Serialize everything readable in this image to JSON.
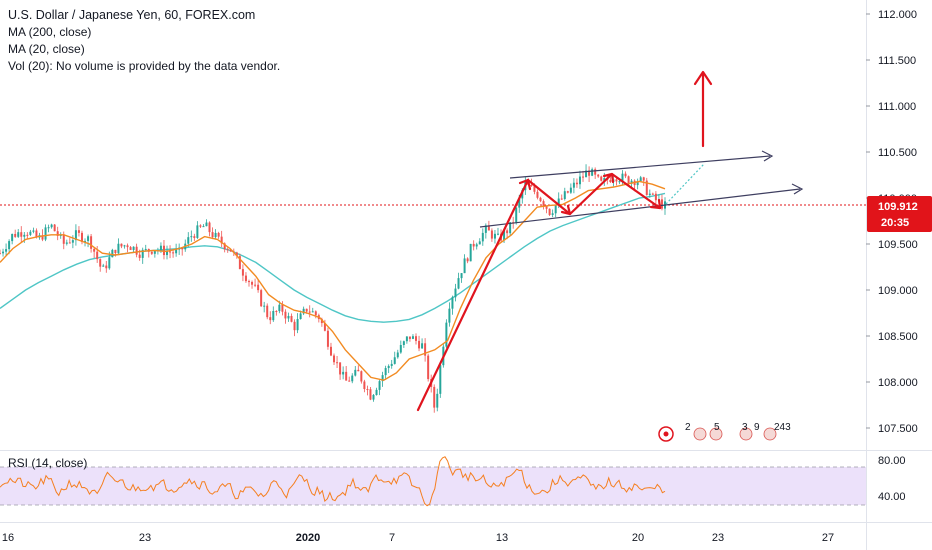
{
  "legend": {
    "title": "U.S. Dollar / Japanese Yen, 60, FOREX.com",
    "ma200": "MA (200, close)",
    "ma20": "MA (20, close)",
    "vol": "Vol (20): No volume is provided by the data vendor."
  },
  "rsi": {
    "label": "RSI (14, close)",
    "ticks": [
      "80.00",
      "40.00"
    ]
  },
  "current_price": {
    "value": "109.912",
    "countdown": "20:35",
    "color": "#e1141a"
  },
  "colors": {
    "candle_up": "#26a69a",
    "candle_down": "#ef5350",
    "ma20": "#f28b22",
    "ma200": "#4fc6c6",
    "annotation_red": "#e0141e",
    "channel": "#3e3e60",
    "rsi_line": "#f57f20",
    "rsi_band": "#ece1fa"
  },
  "events": {
    "labels": [
      "2",
      "5",
      "3",
      "9",
      "243"
    ]
  },
  "chart_data": {
    "type": "line",
    "title": "U.S. Dollar / Japanese Yen, 60, FOREX.com",
    "xlabel": "",
    "ylabel": "",
    "x_ticks": [
      "16",
      "23",
      "2020",
      "7",
      "13",
      "20",
      "23",
      "27"
    ],
    "y_ticks": [
      "112.000",
      "111.500",
      "111.000",
      "110.500",
      "110.000",
      "109.500",
      "109.000",
      "108.500",
      "108.000",
      "107.500"
    ],
    "ylim": [
      107.3,
      112.1
    ],
    "x": [
      0,
      5,
      10,
      15,
      20,
      25,
      30,
      35,
      40,
      45,
      50,
      55,
      60,
      65,
      70,
      75,
      80,
      85,
      90,
      95,
      100,
      105,
      110,
      115,
      120,
      125,
      130,
      135,
      140,
      145,
      150,
      155,
      160,
      165,
      170,
      175,
      180,
      185,
      190,
      195,
      200,
      205,
      210,
      215,
      220,
      225,
      230,
      235,
      240,
      245,
      250,
      255,
      260
    ],
    "series": [
      {
        "name": "",
        "values": [
          109.4,
          109.6,
          109.65,
          109.55,
          109.7,
          109.5,
          109.6,
          109.55,
          109.2,
          109.45,
          109.5,
          109.4,
          109.45,
          109.42,
          109.4,
          109.6,
          109.7,
          109.55,
          109.45,
          109.2,
          109.0,
          108.7,
          108.8,
          108.6,
          108.8,
          108.7,
          108.3,
          108.0,
          108.1,
          107.85,
          108.1,
          108.3,
          108.5,
          108.4,
          107.7,
          108.8,
          109.2,
          109.5,
          109.65,
          109.55,
          109.7,
          110.15,
          110.05,
          109.85,
          110.0,
          110.15,
          110.3,
          110.15,
          110.25,
          110.2,
          110.2,
          110.0,
          109.912
        ]
      },
      {
        "name": "",
        "values": [
          109.3,
          109.45,
          109.55,
          109.58,
          109.6,
          109.6,
          109.55,
          109.5,
          109.4,
          109.38,
          109.4,
          109.42,
          109.43,
          109.42,
          109.45,
          109.5,
          109.58,
          109.55,
          109.45,
          109.3,
          109.15,
          108.95,
          108.85,
          108.78,
          108.75,
          108.7,
          108.55,
          108.35,
          108.2,
          108.05,
          108.02,
          108.1,
          108.25,
          108.3,
          108.35,
          108.45,
          108.8,
          109.1,
          109.35,
          109.5,
          109.6,
          109.75,
          109.9,
          109.92,
          109.93,
          110.0,
          110.08,
          110.1,
          110.12,
          110.15,
          110.18,
          110.15,
          110.1
        ]
      },
      {
        "name": "",
        "values": [
          108.8,
          108.9,
          109.0,
          109.08,
          109.15,
          109.22,
          109.28,
          109.33,
          109.36,
          109.38,
          109.4,
          109.42,
          109.43,
          109.44,
          109.45,
          109.47,
          109.48,
          109.47,
          109.43,
          109.37,
          109.3,
          109.2,
          109.1,
          109.0,
          108.92,
          108.85,
          108.78,
          108.72,
          108.68,
          108.66,
          108.65,
          108.66,
          108.68,
          108.73,
          108.8,
          108.88,
          108.97,
          109.07,
          109.17,
          109.27,
          109.37,
          109.47,
          109.56,
          109.64,
          109.7,
          109.75,
          109.8,
          109.85,
          109.9,
          109.95,
          110.0,
          110.02,
          110.05
        ]
      }
    ]
  }
}
